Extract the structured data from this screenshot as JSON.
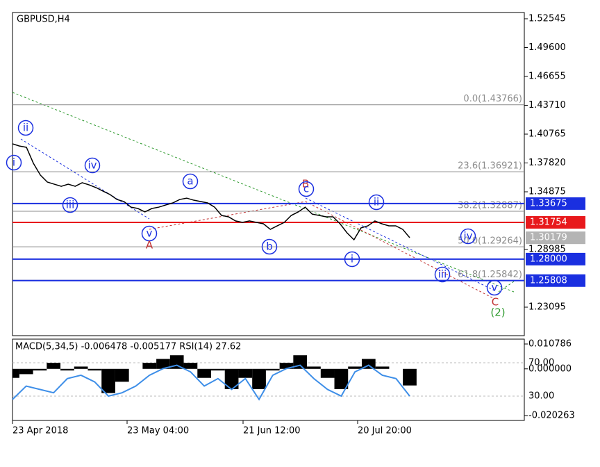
{
  "chart_data": {
    "type": "line",
    "title": "GBPUSD,H4",
    "series": [
      {
        "name": "GBPUSD",
        "color": "#000000",
        "values": [
          1.3977,
          1.3955,
          1.3942,
          1.3778,
          1.3658,
          1.3587,
          1.3565,
          1.3544,
          1.3565,
          1.3544,
          1.358,
          1.3558,
          1.353,
          1.3494,
          1.3459,
          1.3409,
          1.3388,
          1.3331,
          1.3317,
          1.3282,
          1.3317,
          1.3331,
          1.3353,
          1.3374,
          1.3409,
          1.3423,
          1.3402,
          1.3388,
          1.3374,
          1.3331,
          1.3246,
          1.3232,
          1.319,
          1.3175,
          1.319,
          1.3175,
          1.3161,
          1.3104,
          1.314,
          1.3175,
          1.3246,
          1.3282,
          1.3331,
          1.326,
          1.3246,
          1.3232,
          1.3232,
          1.3161,
          1.3069,
          1.2998,
          1.3118,
          1.314,
          1.319,
          1.3161,
          1.314,
          1.314,
          1.3104,
          1.3019
        ]
      }
    ],
    "ylim": [
      1.20185,
      1.53184
    ],
    "yticks": [
      {
        "value": 1.52545,
        "label": "1.52545"
      },
      {
        "value": 1.496,
        "label": "1.49600"
      },
      {
        "value": 1.46655,
        "label": "1.46655"
      },
      {
        "value": 1.4371,
        "label": "1.43710"
      },
      {
        "value": 1.40765,
        "label": "1.40765"
      },
      {
        "value": 1.3782,
        "label": "1.37820"
      },
      {
        "value": 1.34875,
        "label": "1.34875"
      },
      {
        "value": 1.28985,
        "label": "1.28985"
      },
      {
        "value": 1.23095,
        "label": "1.23095"
      }
    ],
    "levels": [
      {
        "value": 1.33675,
        "label": "1.33675",
        "color": "#1a2fe0"
      },
      {
        "value": 1.31754,
        "label": "1.31754",
        "color": "#e8191c"
      },
      {
        "value": 1.28,
        "label": "1.28000",
        "color": "#1a2fe0"
      },
      {
        "value": 1.25808,
        "label": "1.25808",
        "color": "#1a2fe0"
      }
    ],
    "current_price": {
      "value": 1.30179,
      "label": "1.30179",
      "color": "#b4b4b4"
    },
    "fib_levels": [
      {
        "value": 1.43766,
        "label": "0.0(1.43766)"
      },
      {
        "value": 1.36921,
        "label": "23.6(1.36921)"
      },
      {
        "value": 1.32887,
        "label": "38.2(1.32887)"
      },
      {
        "value": 1.29264,
        "label": "50.0(1.29264)"
      },
      {
        "value": 1.25842,
        "label": "61.8(1.25842)"
      }
    ],
    "wave_labels": [
      "i",
      "ii",
      "iii",
      "iv",
      "v",
      "A",
      "a",
      "b",
      "B",
      "c",
      "ii",
      "i",
      "iv",
      "iii",
      "v",
      "C",
      "(2)"
    ],
    "x_labels": [
      "23 Apr 2018",
      "23 May 04:00",
      "21 Jun 12:00",
      "20 Jul 20:00"
    ],
    "indicator": {
      "title": "MACD(5,34,5) -0.006478 -0.005177 RSI(14) 27.62",
      "macd": {
        "name": "MACD",
        "color": "#000000",
        "values": [
          -0.0039,
          -0.0023,
          -0.0007,
          0.0026,
          -0.0007,
          0.001,
          -0.0007,
          -0.0105,
          -0.0056,
          0,
          0.0026,
          0.0043,
          0.0059,
          0.0026,
          -0.0039,
          -0.0007,
          -0.0088,
          -0.0039,
          -0.0088,
          -0.0007,
          0.0026,
          0.0059,
          0.001,
          -0.0039,
          -0.0088,
          0.001,
          0.0043,
          0.001,
          0,
          -0.0072
        ]
      },
      "rsi": {
        "name": "RSI(14)",
        "color": "#3d8ee8",
        "values": [
          26,
          42,
          38,
          34,
          51,
          55,
          47,
          30,
          34,
          42,
          55,
          63,
          67,
          59,
          42,
          51,
          38,
          51,
          26,
          55,
          63,
          67,
          51,
          38,
          30,
          59,
          67,
          55,
          51,
          30
        ]
      },
      "ylim": [
        -0.022373,
        0.012896
      ],
      "yticks": [
        {
          "value": 0.010786,
          "label": "0.010786"
        },
        {
          "value": 0,
          "label": "0.000000"
        },
        {
          "value": -0.020263,
          "label": "-0.020263"
        }
      ],
      "y2lim": [
        0.8,
        98.3
      ],
      "y2ticks": [
        {
          "value": 70,
          "label": "70.00"
        },
        {
          "value": 30,
          "label": "30.00"
        }
      ]
    }
  }
}
